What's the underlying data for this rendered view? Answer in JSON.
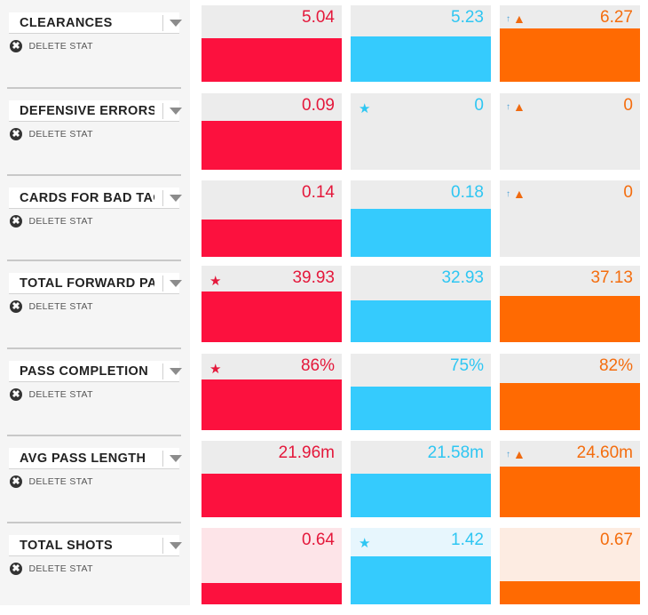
{
  "delete_label": "DELETE STAT",
  "delete_glyph": "✖",
  "colors": {
    "team1": "#fc113e",
    "team2": "#35cbfd",
    "team3": "#ff6a02"
  },
  "icons": {
    "star": "★",
    "trend_arrow": "↑",
    "flame": "▲"
  },
  "stats": [
    {
      "name": "CLEARANCES",
      "values": [
        "5.04",
        "5.23",
        "6.27"
      ],
      "fill": [
        0.57,
        0.59,
        0.7
      ],
      "icons": [
        "",
        "",
        "trend-flame"
      ]
    },
    {
      "name": "DEFENSIVE ERRORS",
      "values": [
        "0.09",
        "0",
        "0"
      ],
      "fill": [
        0.64,
        0.0,
        0.0
      ],
      "icons": [
        "",
        "star",
        "trend-flame"
      ]
    },
    {
      "name": "CARDS FOR BAD TACKLES",
      "values": [
        "0.14",
        "0.18",
        "0"
      ],
      "fill": [
        0.49,
        0.63,
        0.0
      ],
      "icons": [
        "",
        "",
        "trend-flame"
      ]
    },
    {
      "name": "TOTAL FORWARD PASSES",
      "values": [
        "39.93",
        "32.93",
        "37.13"
      ],
      "fill": [
        0.66,
        0.55,
        0.6
      ],
      "icons": [
        "star",
        "",
        ""
      ]
    },
    {
      "name": "PASS COMPLETION",
      "values": [
        "86%",
        "75%",
        "82%"
      ],
      "fill": [
        0.66,
        0.57,
        0.62
      ],
      "icons": [
        "star",
        "",
        ""
      ]
    },
    {
      "name": "AVG PASS LENGTH",
      "values": [
        "21.96m",
        "21.58m",
        "24.60m"
      ],
      "fill": [
        0.57,
        0.57,
        0.66
      ],
      "icons": [
        "",
        "",
        "trend-flame"
      ]
    },
    {
      "name": "TOTAL SHOTS",
      "values": [
        "0.64",
        "1.42",
        "0.67"
      ],
      "fill": [
        0.28,
        0.63,
        0.3
      ],
      "icons": [
        "",
        "star",
        ""
      ],
      "highlight": true
    }
  ]
}
